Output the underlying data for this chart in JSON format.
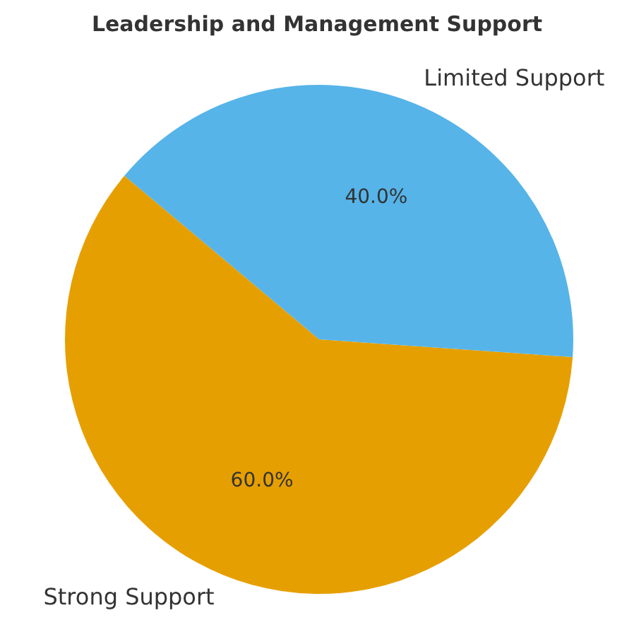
{
  "chart_data": {
    "type": "pie",
    "title": "Leadership and Management Support",
    "categories": [
      "Strong Support",
      "Limited Support"
    ],
    "values": [
      60,
      40
    ],
    "colors": [
      "#e69f00",
      "#56b4e9"
    ],
    "value_labels": [
      "60.0%",
      "40.0%"
    ],
    "legend": false
  }
}
